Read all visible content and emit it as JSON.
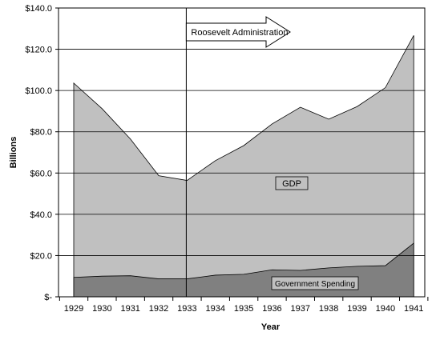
{
  "chart_data": {
    "type": "area",
    "xlabel": "Year",
    "ylabel": "Billions",
    "x": [
      "1929",
      "1930",
      "1931",
      "1932",
      "1933",
      "1934",
      "1935",
      "1936",
      "1937",
      "1938",
      "1939",
      "1940",
      "1941"
    ],
    "ylim": [
      0,
      140
    ],
    "y_ticks": [
      "$-",
      "$20.0",
      "$40.0",
      "$60.0",
      "$80.0",
      "$100.0",
      "$120.0",
      "$140.0"
    ],
    "y_tick_values": [
      0,
      20,
      40,
      60,
      80,
      100,
      120,
      140
    ],
    "grid": true,
    "series": [
      {
        "name": "GDP",
        "values": [
          103.6,
          91.2,
          76.5,
          58.7,
          56.4,
          66.0,
          73.3,
          83.8,
          91.9,
          86.1,
          92.2,
          101.4,
          126.7
        ],
        "color": "#c0c0c0"
      },
      {
        "name": "Government Spending",
        "values": [
          9.4,
          10.0,
          10.2,
          8.7,
          8.7,
          10.5,
          10.9,
          13.1,
          12.8,
          14.0,
          14.8,
          15.1,
          26.0
        ],
        "color": "#808080"
      }
    ],
    "annotations": [
      {
        "text": "Roosevelt Administration",
        "x_start": "1933",
        "x_end": "1938"
      }
    ]
  }
}
